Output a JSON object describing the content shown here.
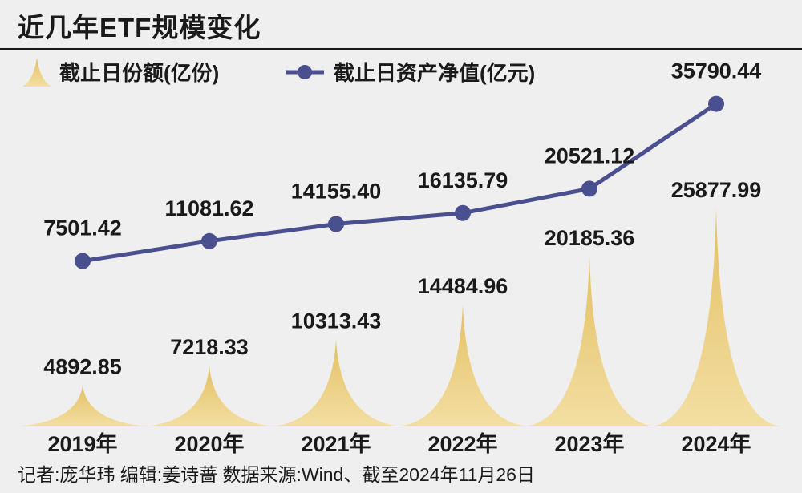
{
  "title": "近几年ETF规模变化",
  "footer": "记者:庞华玮  编辑:姜诗蔷  数据来源:Wind、截至2024年11月26日",
  "colors": {
    "spike": "#e8c874",
    "spike_light": "#f5e2a6",
    "line": "#4a4f8f",
    "background": "#efefef"
  },
  "chart_data": {
    "type": "line",
    "categories": [
      "2019年",
      "2020年",
      "2021年",
      "2022年",
      "2023年",
      "2024年"
    ],
    "series": [
      {
        "name": "截止日份额(亿份)",
        "render": "spike",
        "values": [
          4892.85,
          7218.33,
          10313.43,
          14484.96,
          20185.36,
          25877.99
        ],
        "labels": [
          "4892.85",
          "7218.33",
          "10313.43",
          "14484.96",
          "20185.36",
          "25877.99"
        ]
      },
      {
        "name": "截止日资产净值(亿元)",
        "render": "line",
        "values": [
          7501.42,
          11081.62,
          14155.4,
          16135.79,
          20521.12,
          35790.44
        ],
        "labels": [
          "7501.42",
          "11081.62",
          "14155.40",
          "16135.79",
          "20521.12",
          "35790.44"
        ]
      }
    ],
    "legend_position": "top-left",
    "grid": false
  }
}
